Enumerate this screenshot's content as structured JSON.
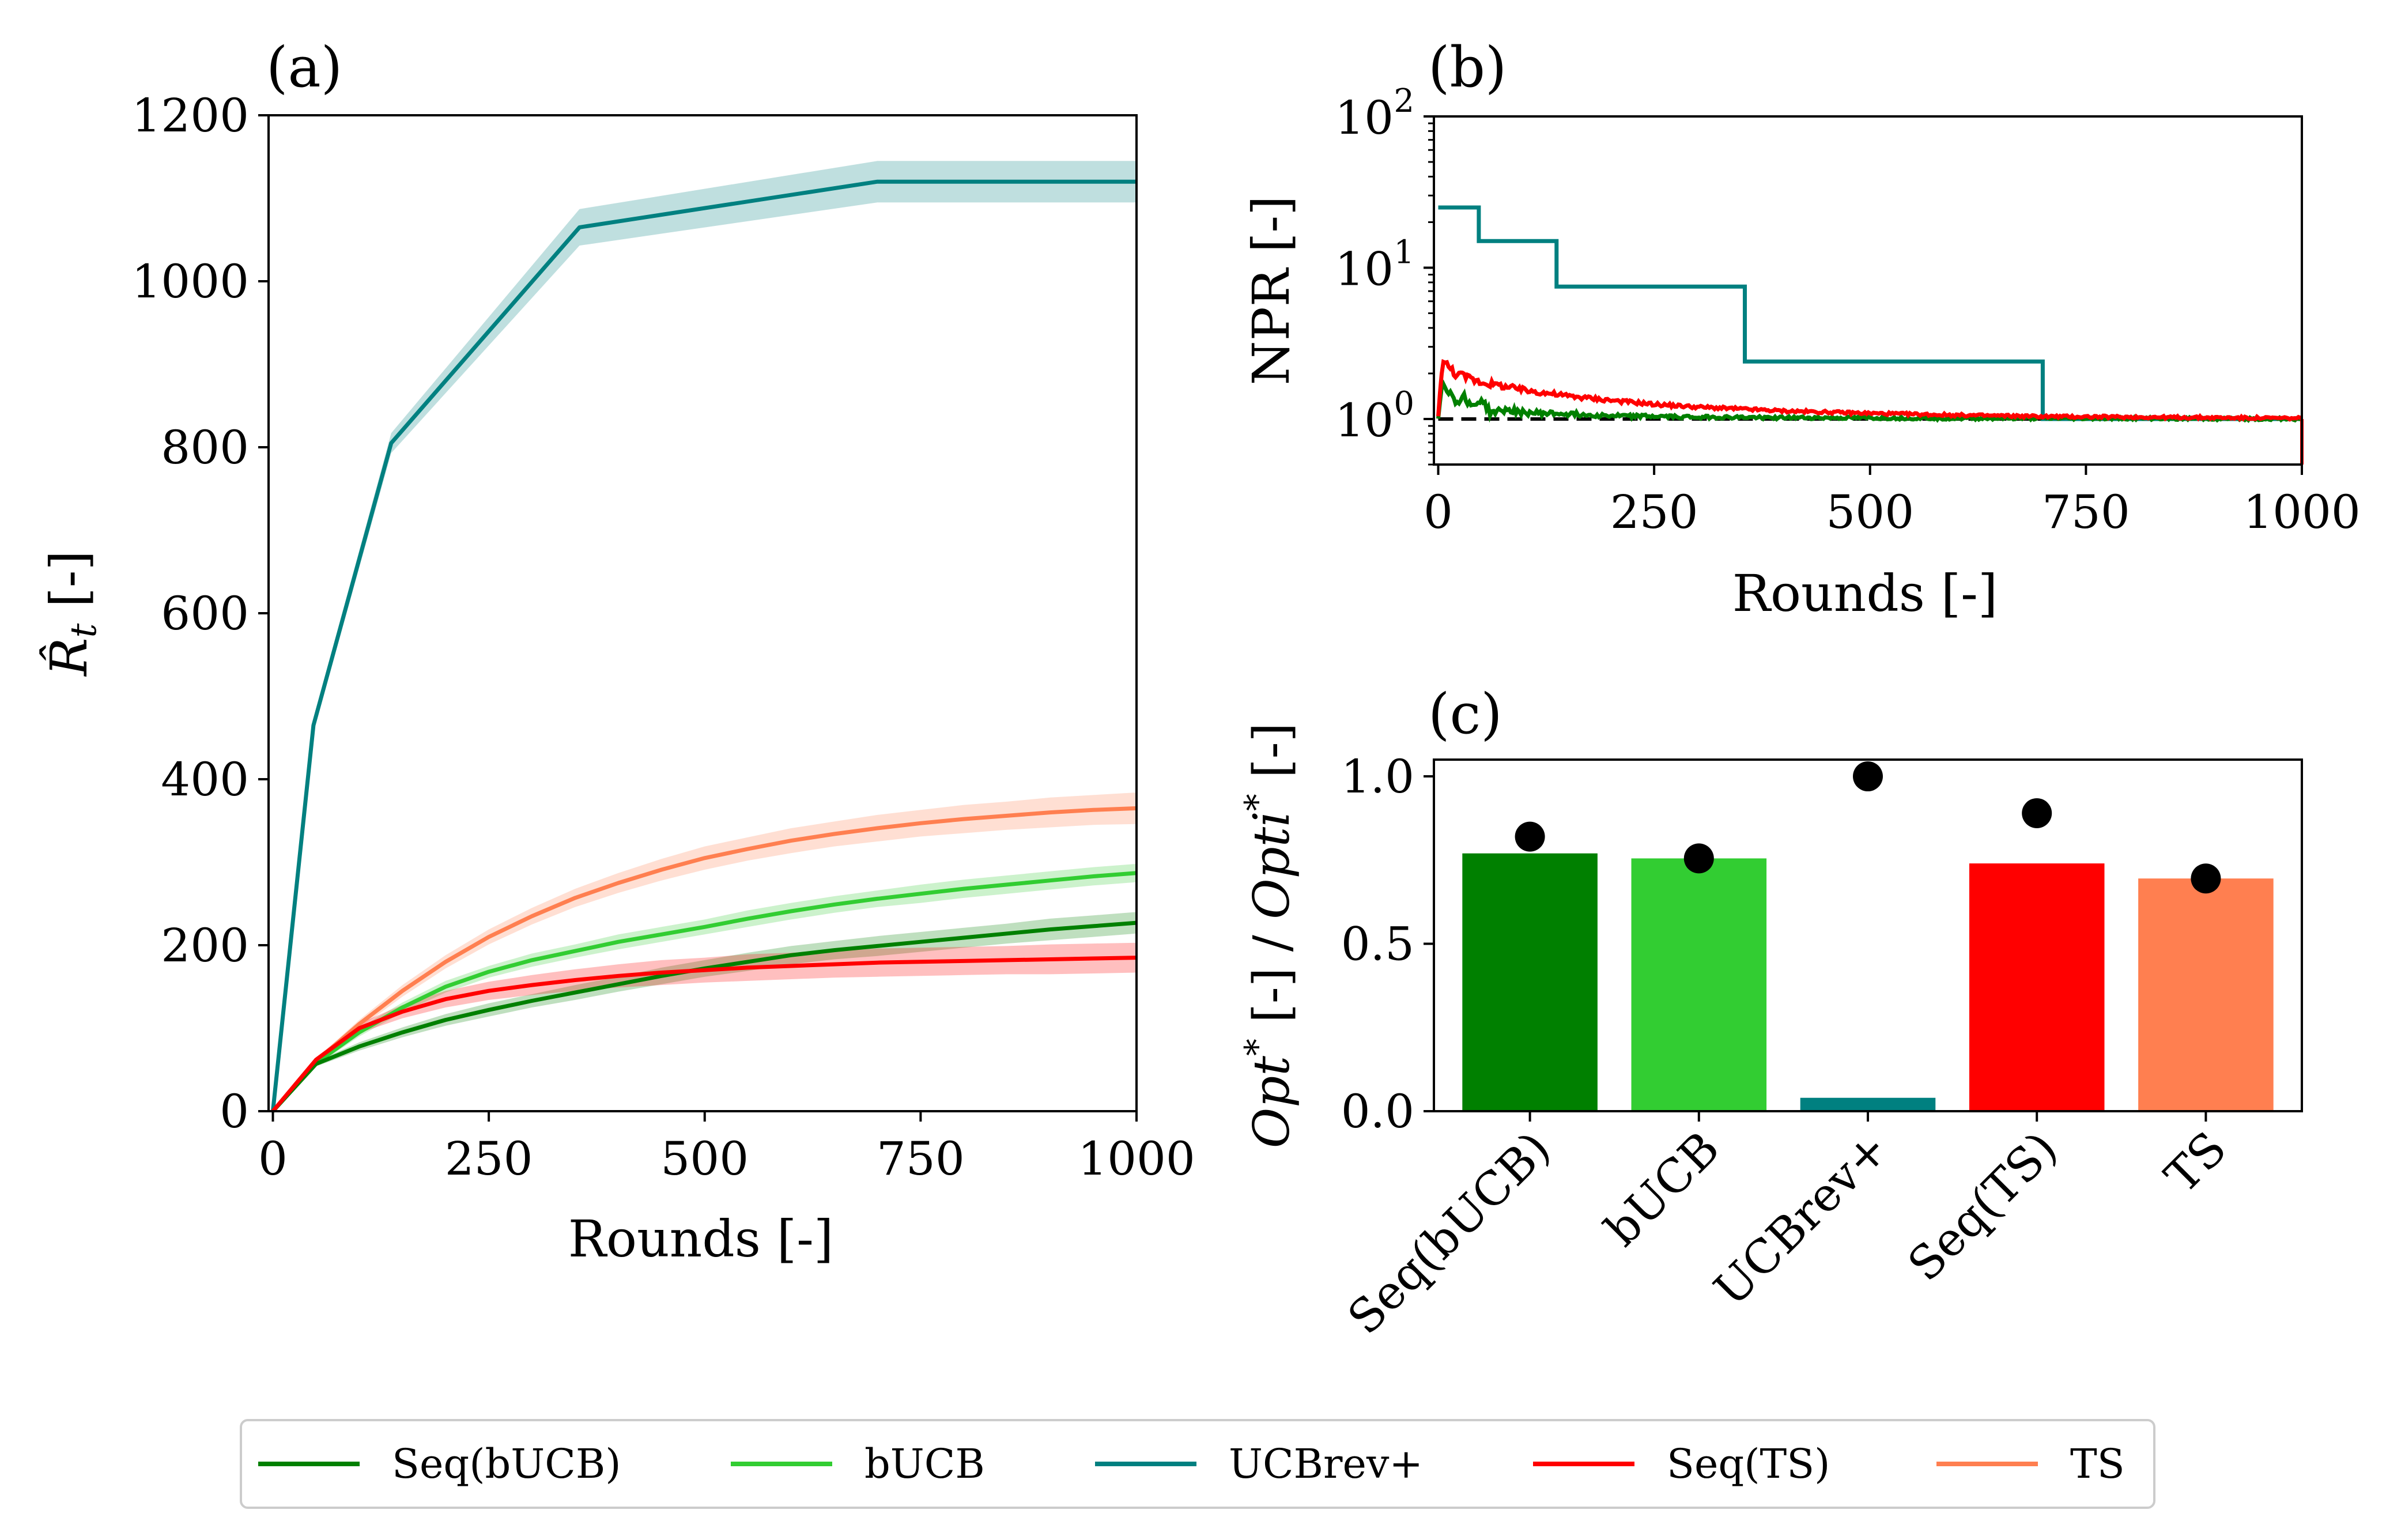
{
  "colors": {
    "seq_bucb": "#008000",
    "bucb": "#32cd32",
    "ucbrev": "#008080",
    "seq_ts": "#ff0000",
    "ts": "#ff7f50",
    "axis": "#000000",
    "reference": "#000000"
  },
  "legend": {
    "placement": "bottom-center",
    "entries": [
      "Seq(bUCB)",
      "bUCB",
      "UCBrev+",
      "Seq(TS)",
      "TS"
    ]
  },
  "chart_data": [
    {
      "panel": "(a)",
      "type": "line",
      "xlabel": "Rounds [-]",
      "ylabel": "R̂t [-]",
      "xlim": [
        -5,
        1000
      ],
      "ylim": [
        0,
        1200
      ],
      "xticks": [
        "0",
        "250",
        "500",
        "750",
        "1000"
      ],
      "yticks": [
        "0",
        "200",
        "400",
        "600",
        "800",
        "1000",
        "1200"
      ],
      "grid": false,
      "shaded_band": true,
      "series": [
        {
          "name": "UCBrev+",
          "color_key": "ucbrev",
          "x": [
            0,
            47,
            137,
            355,
            700,
            1000
          ],
          "y": [
            0,
            465,
            805,
            1065,
            1120,
            1120
          ],
          "band": [
            0,
            8,
            12,
            22,
            25,
            25
          ]
        },
        {
          "name": "TS",
          "color_key": "ts",
          "x": [
            0,
            50,
            100,
            150,
            200,
            250,
            300,
            350,
            400,
            450,
            500,
            550,
            600,
            650,
            700,
            750,
            800,
            850,
            900,
            950,
            1000
          ],
          "y": [
            0,
            60,
            105,
            145,
            180,
            210,
            235,
            257,
            275,
            291,
            305,
            316,
            326,
            334,
            341,
            347,
            352,
            356,
            360,
            363,
            365
          ],
          "band": [
            0,
            3,
            5,
            7,
            8,
            9,
            10,
            11,
            12,
            13,
            14,
            14,
            15,
            15,
            16,
            16,
            17,
            17,
            18,
            18,
            19
          ]
        },
        {
          "name": "bUCB",
          "color_key": "bucb",
          "x": [
            0,
            50,
            100,
            150,
            200,
            250,
            300,
            350,
            400,
            450,
            500,
            550,
            600,
            650,
            700,
            750,
            800,
            850,
            900,
            950,
            1000
          ],
          "y": [
            0,
            58,
            95,
            125,
            150,
            168,
            182,
            193,
            204,
            213,
            222,
            232,
            241,
            249,
            256,
            262,
            268,
            273,
            278,
            283,
            287
          ],
          "band": [
            0,
            3,
            5,
            6,
            7,
            7,
            8,
            8,
            9,
            9,
            9,
            10,
            10,
            10,
            10,
            11,
            11,
            11,
            11,
            11,
            11
          ]
        },
        {
          "name": "Seq(bUCB)",
          "color_key": "seq_bucb",
          "x": [
            0,
            50,
            100,
            150,
            200,
            250,
            300,
            350,
            400,
            450,
            500,
            550,
            600,
            650,
            700,
            750,
            800,
            850,
            900,
            950,
            1000
          ],
          "y": [
            0,
            57,
            78,
            95,
            110,
            122,
            133,
            143,
            153,
            163,
            172,
            180,
            188,
            194,
            199,
            204,
            209,
            214,
            219,
            223,
            227
          ],
          "band": [
            0,
            3,
            5,
            6,
            7,
            8,
            8,
            9,
            9,
            10,
            10,
            11,
            11,
            11,
            12,
            12,
            12,
            12,
            13,
            13,
            13
          ]
        },
        {
          "name": "Seq(TS)",
          "color_key": "seq_ts",
          "x": [
            0,
            50,
            100,
            150,
            200,
            250,
            300,
            350,
            400,
            450,
            500,
            550,
            600,
            650,
            700,
            750,
            800,
            850,
            900,
            950,
            1000
          ],
          "y": [
            0,
            62,
            100,
            120,
            135,
            145,
            152,
            158,
            163,
            167,
            170,
            173,
            175,
            177,
            179,
            180,
            181,
            182,
            183,
            184,
            185
          ],
          "band": [
            0,
            3,
            6,
            8,
            10,
            11,
            12,
            13,
            14,
            15,
            15,
            16,
            16,
            16,
            17,
            17,
            17,
            17,
            18,
            18,
            18
          ]
        }
      ]
    },
    {
      "panel": "(b)",
      "type": "line",
      "xlabel": "Rounds [-]",
      "ylabel": "NPR [-]",
      "yscale": "log",
      "xlim": [
        -5,
        1000
      ],
      "ylim": [
        0.5,
        100
      ],
      "xticks": [
        "0",
        "250",
        "500",
        "750",
        "1000"
      ],
      "yticks": [
        {
          "base": "10",
          "exp": "0"
        },
        {
          "base": "10",
          "exp": "1"
        },
        {
          "base": "10",
          "exp": "2"
        }
      ],
      "grid": false,
      "reference_line": {
        "y": 1,
        "x": [
          0,
          1000
        ],
        "style": "dashed"
      },
      "series": [
        {
          "name": "UCBrev+",
          "color_key": "ucbrev",
          "step": true,
          "x": [
            0,
            47,
            47,
            137,
            137,
            355,
            355,
            700,
            700,
            1000
          ],
          "y": [
            25,
            25,
            15,
            15,
            7.5,
            7.5,
            2.4,
            2.4,
            1.0,
            1.0
          ]
        },
        {
          "name": "Seq(bUCB)",
          "color_key": "seq_bucb",
          "noisy": true,
          "x": [
            0,
            5,
            10,
            20,
            30,
            40,
            50,
            60,
            80,
            100,
            150,
            200,
            300,
            400,
            600,
            800,
            1000
          ],
          "y": [
            1.0,
            1.8,
            1.6,
            1.3,
            1.4,
            1.2,
            1.35,
            1.1,
            1.15,
            1.1,
            1.08,
            1.05,
            1.03,
            1.02,
            1.01,
            1.01,
            1.0
          ]
        },
        {
          "name": "Seq(TS)",
          "color_key": "seq_ts",
          "noisy": true,
          "x": [
            0,
            5,
            20,
            50,
            100,
            150,
            200,
            250,
            300,
            400,
            500,
            600,
            700,
            800,
            900,
            1000
          ],
          "y": [
            1.0,
            2.4,
            2.0,
            1.75,
            1.55,
            1.42,
            1.33,
            1.25,
            1.2,
            1.13,
            1.09,
            1.06,
            1.04,
            1.03,
            1.02,
            1.01
          ]
        }
      ]
    },
    {
      "panel": "(c)",
      "type": "bar",
      "ylabel_parts": [
        "Opt",
        "*",
        " [-] / ",
        "Opti",
        "*",
        " [-]"
      ],
      "ylim": [
        0,
        1.05
      ],
      "yticks": [
        "0.0",
        "0.5",
        "1.0"
      ],
      "grid": false,
      "categories": [
        "Seq(bUCB)",
        "bUCB",
        "UCBrev+",
        "Seq(TS)",
        "TS"
      ],
      "color_keys": [
        "seq_bucb",
        "bucb",
        "ucbrev",
        "seq_ts",
        "ts"
      ],
      "values": [
        0.77,
        0.755,
        0.04,
        0.74,
        0.695
      ],
      "markers": [
        0.82,
        0.755,
        1.0,
        0.89,
        0.695
      ]
    }
  ]
}
